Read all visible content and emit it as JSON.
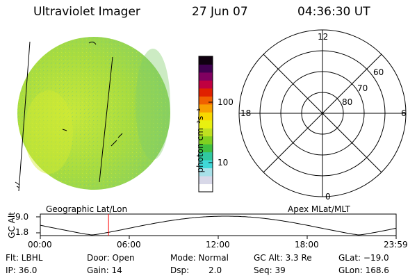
{
  "header": {
    "instrument": "Ultraviolet Imager",
    "date": "27 Jun 07",
    "time": "04:36:30 UT"
  },
  "colorbar": {
    "unit_label": "photon cm⁻²s⁻¹",
    "ticks": [
      "100",
      "10"
    ],
    "colors": [
      "#ffffff",
      "#d8d8e8",
      "#a8e0e8",
      "#40d8d8",
      "#30c8a0",
      "#40c040",
      "#80d020",
      "#c0e020",
      "#e8f010",
      "#f8d800",
      "#f8a000",
      "#f06000",
      "#e02000",
      "#c00040",
      "#800060",
      "#400050",
      "#100010"
    ]
  },
  "polar_plot": {
    "top_label": "12",
    "bottom_label": "0",
    "left_label": "18",
    "right_label": "6",
    "ring_labels": [
      "60",
      "70",
      "80"
    ]
  },
  "footprint": {
    "left_title": "Geographic Lat/Lon",
    "right_title": "Apex MLat/MLT",
    "y_axis_title": "GC Alt",
    "y_ticks": [
      "9.0",
      "1.8"
    ],
    "x_ticks": [
      "00:00",
      "06:00",
      "12:00",
      "18:00",
      "23:59"
    ],
    "marker_time_hours": 4.6,
    "marker_color": "#ff0000"
  },
  "status": {
    "flt": "Flt: LBHL",
    "ip": "IP: 36.0",
    "door": "Door: Open",
    "gain": "Gain: 14",
    "mode": "Mode: Normal",
    "dsp_label": "Dsp:",
    "dsp_value": "2.0",
    "gc_alt": "GC Alt: 3.3 Re",
    "seq": "Seq: 39",
    "glat": "GLat: −19.0",
    "glon": "GLon: 168.6"
  }
}
